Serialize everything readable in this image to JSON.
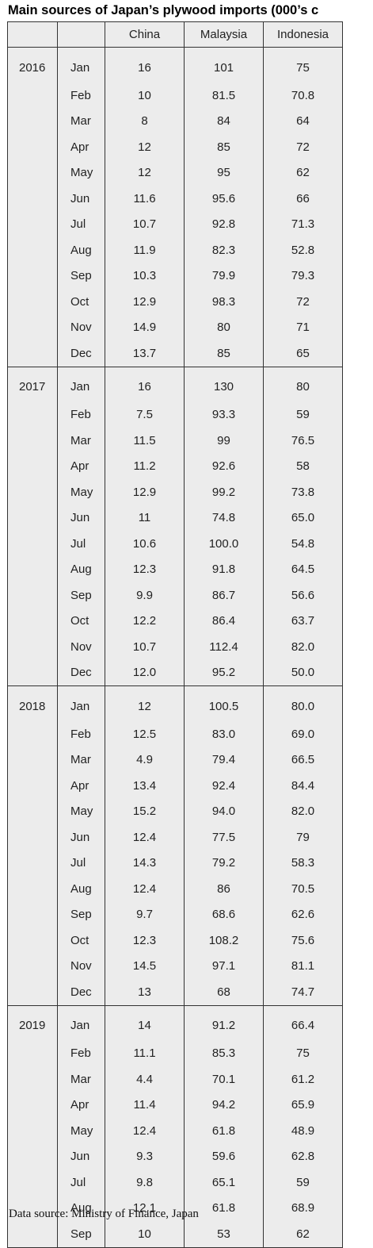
{
  "chart_data": {
    "type": "table",
    "title": "Main sources of Japan’s plywood imports (000’s c",
    "columns": [
      "",
      "",
      "China",
      "Malaysia",
      "Indonesia"
    ],
    "blocks": [
      {
        "year": "2016",
        "rows": [
          {
            "month": "Jan",
            "china": "16",
            "malaysia": "101",
            "indonesia": "75"
          },
          {
            "month": "Feb",
            "china": "10",
            "malaysia": "81.5",
            "indonesia": "70.8"
          },
          {
            "month": "Mar",
            "china": "8",
            "malaysia": "84",
            "indonesia": "64"
          },
          {
            "month": "Apr",
            "china": "12",
            "malaysia": "85",
            "indonesia": "72"
          },
          {
            "month": "May",
            "china": "12",
            "malaysia": "95",
            "indonesia": "62"
          },
          {
            "month": "Jun",
            "china": "11.6",
            "malaysia": "95.6",
            "indonesia": "66"
          },
          {
            "month": "Jul",
            "china": "10.7",
            "malaysia": "92.8",
            "indonesia": "71.3"
          },
          {
            "month": "Aug",
            "china": "11.9",
            "malaysia": "82.3",
            "indonesia": "52.8"
          },
          {
            "month": "Sep",
            "china": "10.3",
            "malaysia": "79.9",
            "indonesia": "79.3"
          },
          {
            "month": "Oct",
            "china": "12.9",
            "malaysia": "98.3",
            "indonesia": "72"
          },
          {
            "month": "Nov",
            "china": "14.9",
            "malaysia": "80",
            "indonesia": "71"
          },
          {
            "month": "Dec",
            "china": "13.7",
            "malaysia": "85",
            "indonesia": "65"
          }
        ]
      },
      {
        "year": "2017",
        "rows": [
          {
            "month": "Jan",
            "china": "16",
            "malaysia": "130",
            "indonesia": "80"
          },
          {
            "month": "Feb",
            "china": "7.5",
            "malaysia": "93.3",
            "indonesia": "59"
          },
          {
            "month": "Mar",
            "china": "11.5",
            "malaysia": "99",
            "indonesia": "76.5"
          },
          {
            "month": "Apr",
            "china": "11.2",
            "malaysia": "92.6",
            "indonesia": "58"
          },
          {
            "month": "May",
            "china": "12.9",
            "malaysia": "99.2",
            "indonesia": "73.8"
          },
          {
            "month": "Jun",
            "china": "11",
            "malaysia": "74.8",
            "indonesia": "65.0"
          },
          {
            "month": "Jul",
            "china": "10.6",
            "malaysia": "100.0",
            "indonesia": "54.8"
          },
          {
            "month": "Aug",
            "china": "12.3",
            "malaysia": "91.8",
            "indonesia": "64.5"
          },
          {
            "month": "Sep",
            "china": "9.9",
            "malaysia": "86.7",
            "indonesia": "56.6"
          },
          {
            "month": "Oct",
            "china": "12.2",
            "malaysia": "86.4",
            "indonesia": "63.7"
          },
          {
            "month": "Nov",
            "china": "10.7",
            "malaysia": "112.4",
            "indonesia": "82.0"
          },
          {
            "month": "Dec",
            "china": "12.0",
            "malaysia": "95.2",
            "indonesia": "50.0"
          }
        ]
      },
      {
        "year": "2018",
        "rows": [
          {
            "month": "Jan",
            "china": "12",
            "malaysia": "100.5",
            "indonesia": "80.0"
          },
          {
            "month": "Feb",
            "china": "12.5",
            "malaysia": "83.0",
            "indonesia": "69.0"
          },
          {
            "month": "Mar",
            "china": "4.9",
            "malaysia": "79.4",
            "indonesia": "66.5"
          },
          {
            "month": "Apr",
            "china": "13.4",
            "malaysia": "92.4",
            "indonesia": "84.4"
          },
          {
            "month": "May",
            "china": "15.2",
            "malaysia": "94.0",
            "indonesia": "82.0"
          },
          {
            "month": "Jun",
            "china": "12.4",
            "malaysia": "77.5",
            "indonesia": "79"
          },
          {
            "month": "Jul",
            "china": "14.3",
            "malaysia": "79.2",
            "indonesia": "58.3"
          },
          {
            "month": "Aug",
            "china": "12.4",
            "malaysia": "86",
            "indonesia": "70.5"
          },
          {
            "month": "Sep",
            "china": "9.7",
            "malaysia": "68.6",
            "indonesia": "62.6"
          },
          {
            "month": "Oct",
            "china": "12.3",
            "malaysia": "108.2",
            "indonesia": "75.6"
          },
          {
            "month": "Nov",
            "china": "14.5",
            "malaysia": "97.1",
            "indonesia": "81.1"
          },
          {
            "month": "Dec",
            "china": "13",
            "malaysia": "68",
            "indonesia": "74.7"
          }
        ]
      },
      {
        "year": "2019",
        "rows": [
          {
            "month": "Jan",
            "china": "14",
            "malaysia": "91.2",
            "indonesia": "66.4"
          },
          {
            "month": "Feb",
            "china": "11.1",
            "malaysia": "85.3",
            "indonesia": "75"
          },
          {
            "month": "Mar",
            "china": "4.4",
            "malaysia": "70.1",
            "indonesia": "61.2"
          },
          {
            "month": "Apr",
            "china": "11.4",
            "malaysia": "94.2",
            "indonesia": "65.9"
          },
          {
            "month": "May",
            "china": "12.4",
            "malaysia": "61.8",
            "indonesia": "48.9"
          },
          {
            "month": "Jun",
            "china": "9.3",
            "malaysia": "59.6",
            "indonesia": "62.8"
          },
          {
            "month": "Jul",
            "china": "9.8",
            "malaysia": "65.1",
            "indonesia": "59"
          },
          {
            "month": "Aug",
            "china": "12.1",
            "malaysia": "61.8",
            "indonesia": "68.9"
          },
          {
            "month": "Sep",
            "china": "10",
            "malaysia": "53",
            "indonesia": "62"
          }
        ]
      }
    ],
    "source": "Data source: Ministry of Finance, Japan"
  }
}
